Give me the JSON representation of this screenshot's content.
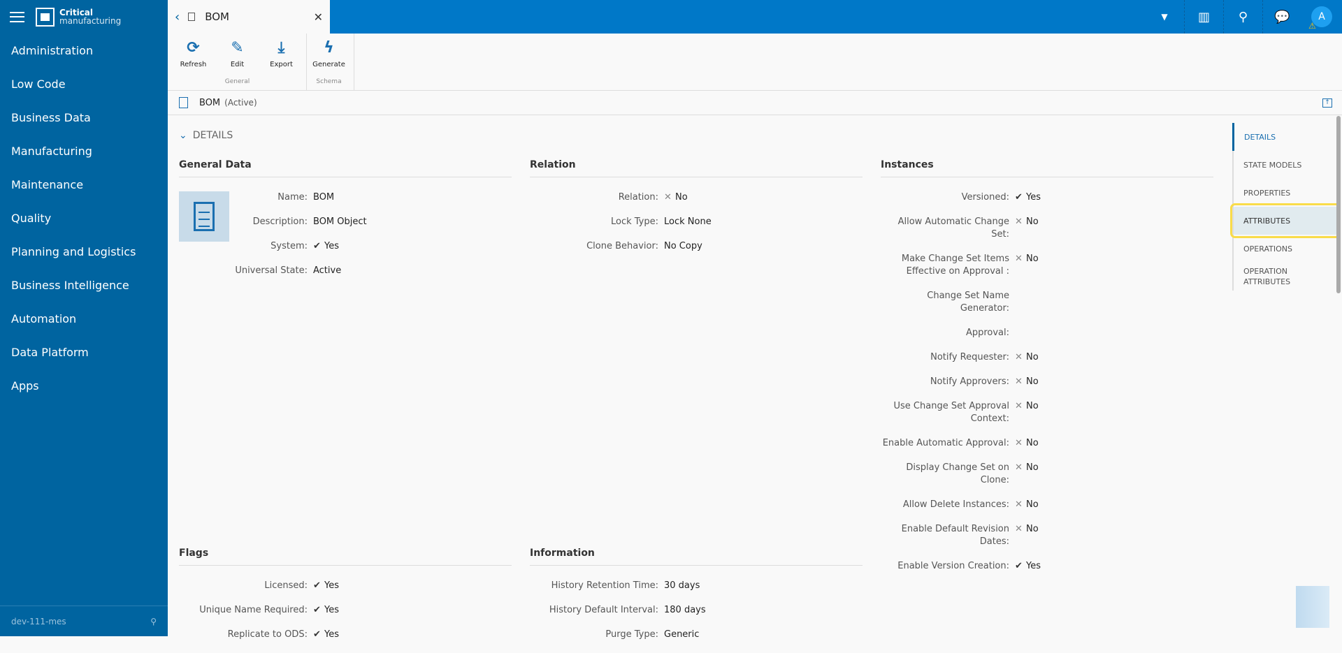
{
  "app": {
    "brand_line1": "Critical",
    "brand_line2": "manufacturing",
    "environment": "dev-111-mes",
    "accent": "#0078c8",
    "sidebar_color": "#0064a0"
  },
  "sidebar": {
    "items": [
      {
        "label": "Administration"
      },
      {
        "label": "Low Code"
      },
      {
        "label": "Business Data"
      },
      {
        "label": "Manufacturing"
      },
      {
        "label": "Maintenance"
      },
      {
        "label": "Quality"
      },
      {
        "label": "Planning and Logistics"
      },
      {
        "label": "Business Intelligence"
      },
      {
        "label": "Automation"
      },
      {
        "label": "Data Platform"
      },
      {
        "label": "Apps"
      }
    ]
  },
  "tab": {
    "title": "BOM"
  },
  "topbar": {
    "avatar": "A",
    "icons": [
      "dropdown-icon",
      "barcode-icon",
      "search-icon",
      "chat-icon"
    ]
  },
  "toolbar": {
    "groups": [
      {
        "name": "General",
        "buttons": [
          {
            "label": "Refresh",
            "icon": "⟳"
          },
          {
            "label": "Edit",
            "icon": "✎"
          },
          {
            "label": "Export",
            "icon": "⤓"
          }
        ]
      },
      {
        "name": "Schema",
        "buttons": [
          {
            "label": "Generate",
            "icon": "ϟ"
          }
        ]
      }
    ]
  },
  "entity": {
    "name": "BOM",
    "state": "(Active)"
  },
  "details_header": "DETAILS",
  "general": {
    "title": "General Data",
    "rows": [
      {
        "label": "Name:",
        "value": "BOM"
      },
      {
        "label": "Description:",
        "value": "BOM Object"
      },
      {
        "label": "System:",
        "mark": "yes",
        "value": "Yes"
      },
      {
        "label": "Universal State:",
        "value": "Active"
      }
    ]
  },
  "relation": {
    "title": "Relation",
    "rows": [
      {
        "label": "Relation:",
        "mark": "no",
        "value": "No"
      },
      {
        "label": "Lock Type:",
        "value": "Lock None"
      },
      {
        "label": "Clone Behavior:",
        "value": "No Copy"
      }
    ]
  },
  "instances": {
    "title": "Instances",
    "rows": [
      {
        "label": "Versioned:",
        "mark": "yes",
        "value": "Yes"
      },
      {
        "label": "Allow Automatic Change Set:",
        "mark": "no",
        "value": "No"
      },
      {
        "label": "Make Change Set Items Effective on Approval :",
        "mark": "no",
        "value": "No"
      },
      {
        "label": "Change Set Name Generator:",
        "value": ""
      },
      {
        "label": "Approval:",
        "value": ""
      },
      {
        "label": "Notify Requester:",
        "mark": "no",
        "value": "No"
      },
      {
        "label": "Notify Approvers:",
        "mark": "no",
        "value": "No"
      },
      {
        "label": "Use Change Set Approval Context:",
        "mark": "no",
        "value": "No"
      },
      {
        "label": "Enable Automatic Approval:",
        "mark": "no",
        "value": "No"
      },
      {
        "label": "Display Change Set on Clone:",
        "mark": "no",
        "value": "No"
      },
      {
        "label": "Allow Delete Instances:",
        "mark": "no",
        "value": "No"
      },
      {
        "label": "Enable Default Revision Dates:",
        "mark": "no",
        "value": "No"
      },
      {
        "label": "Enable Version Creation:",
        "mark": "yes",
        "value": "Yes"
      }
    ]
  },
  "flags": {
    "title": "Flags",
    "rows": [
      {
        "label": "Licensed:",
        "mark": "yes",
        "value": "Yes"
      },
      {
        "label": "Unique Name Required:",
        "mark": "yes",
        "value": "Yes"
      },
      {
        "label": "Replicate to ODS:",
        "mark": "yes",
        "value": "Yes"
      }
    ]
  },
  "information": {
    "title": "Information",
    "rows": [
      {
        "label": "History Retention Time:",
        "value": "30 days"
      },
      {
        "label": "History Default Interval:",
        "value": "180 days"
      },
      {
        "label": "Purge Type:",
        "value": "Generic"
      }
    ]
  },
  "right_nav": {
    "items": [
      {
        "label": "DETAILS",
        "state": "active"
      },
      {
        "label": "STATE MODELS"
      },
      {
        "label": "PROPERTIES"
      },
      {
        "label": "ATTRIBUTES",
        "state": "highlighted"
      },
      {
        "label": "OPERATIONS"
      },
      {
        "label": "OPERATION ATTRIBUTES"
      }
    ]
  }
}
